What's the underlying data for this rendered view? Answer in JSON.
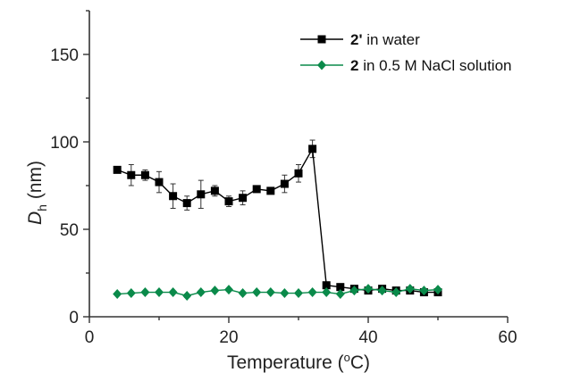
{
  "chart_data": {
    "type": "line",
    "title": "",
    "xlabel": {
      "main": "Temperature (",
      "sup": "o",
      "tail": "C)"
    },
    "ylabel": {
      "main": "D",
      "sub": "h",
      "tail": " (nm)"
    },
    "xlim": [
      0,
      60
    ],
    "ylim": [
      0,
      175
    ],
    "xticks": [
      0,
      20,
      40,
      60
    ],
    "yticks": [
      0,
      50,
      100,
      150
    ],
    "xtick_labels": [
      "0",
      "20",
      "40",
      "60"
    ],
    "ytick_labels": [
      "0",
      "50",
      "100",
      "150"
    ],
    "grid": false,
    "legend_position": "top-right",
    "series": [
      {
        "label_bold": "2'",
        "label_rest": " in water",
        "color": "#000000",
        "marker": "square",
        "x": [
          4,
          6,
          8,
          10,
          12,
          14,
          16,
          18,
          20,
          22,
          24,
          26,
          28,
          30,
          32,
          34,
          36,
          38,
          40,
          42,
          44,
          46,
          48,
          50
        ],
        "y": [
          84,
          81,
          81,
          77,
          69,
          65,
          70,
          72,
          66,
          68,
          73,
          72,
          76,
          82,
          96,
          18,
          17,
          16,
          15,
          16,
          15,
          15,
          14,
          14
        ],
        "err": [
          1,
          6,
          3,
          6,
          7,
          4,
          8,
          3,
          3,
          4,
          1,
          1,
          5,
          5,
          5,
          1,
          1,
          1,
          1,
          1,
          1,
          1,
          1,
          1
        ]
      },
      {
        "label_bold": "2",
        "label_rest": " in 0.5 M NaCl solution",
        "color": "#0a8a4a",
        "marker": "diamond",
        "x": [
          4,
          6,
          8,
          10,
          12,
          14,
          16,
          18,
          20,
          22,
          24,
          26,
          28,
          30,
          32,
          34,
          36,
          38,
          40,
          42,
          44,
          46,
          48,
          50
        ],
        "y": [
          13,
          13.5,
          14,
          14,
          14,
          12,
          14,
          15,
          15.5,
          13.5,
          14,
          14,
          13.5,
          13.5,
          14,
          14,
          13,
          15,
          16,
          15,
          14,
          16,
          15,
          15.5
        ],
        "err": [
          0.5,
          0.5,
          0.5,
          0.5,
          0.5,
          1,
          1,
          0.5,
          0.5,
          0.5,
          0.5,
          0.5,
          0.5,
          0.5,
          0.5,
          0.5,
          0.5,
          0.5,
          0.5,
          0.5,
          0.5,
          0.5,
          0.5,
          0.5
        ]
      }
    ]
  }
}
